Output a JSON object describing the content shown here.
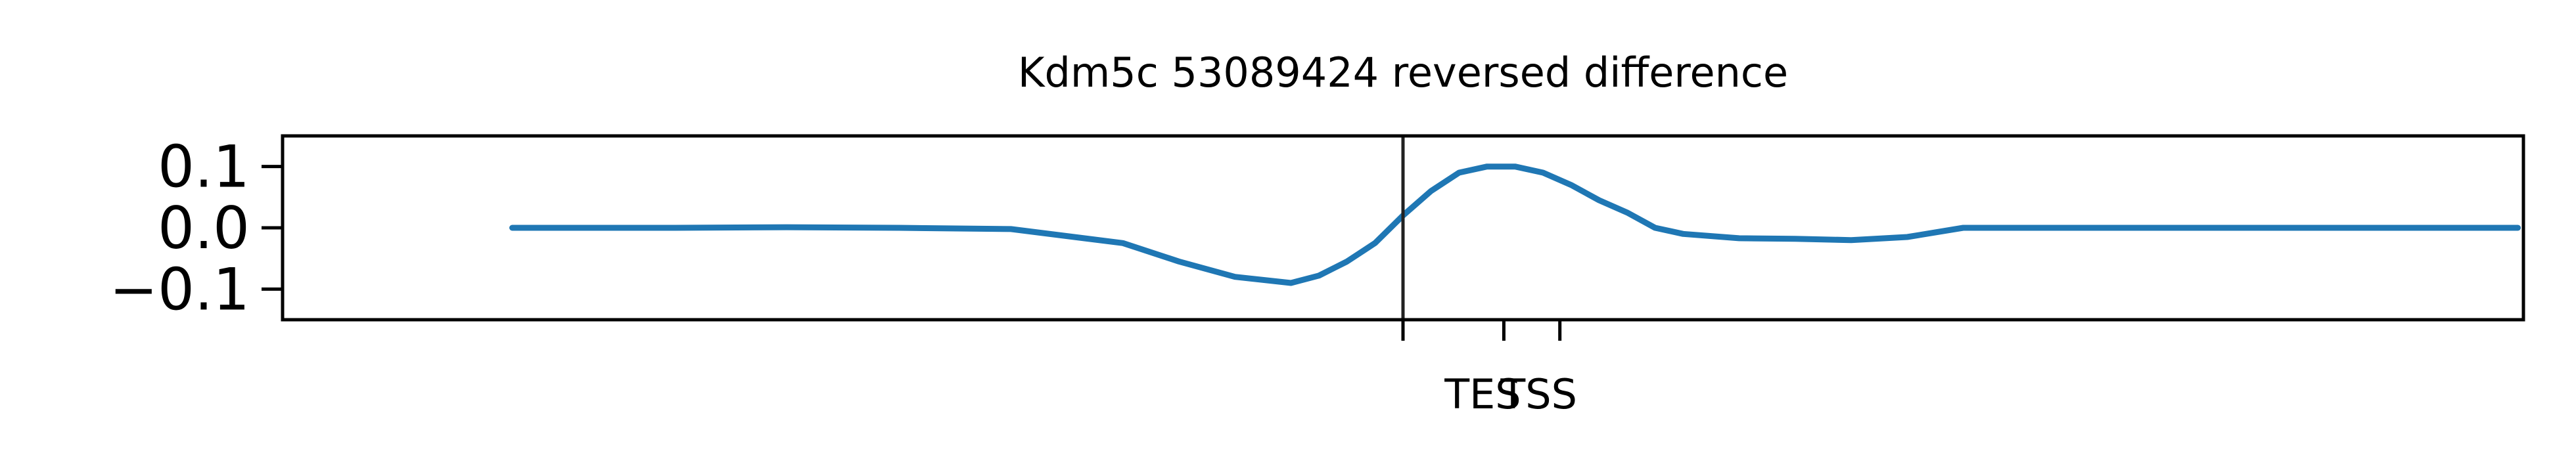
{
  "chart_data": {
    "type": "line",
    "title": "Kdm5c 53089424 reversed difference",
    "xlabel": "",
    "ylabel": "",
    "xlim": [
      -2000,
      2000
    ],
    "ylim": [
      -0.15,
      0.15
    ],
    "grid": false,
    "legend": "none",
    "yticks": [
      {
        "value": 0.1,
        "label": "0.1"
      },
      {
        "value": 0.0,
        "label": "0.0"
      },
      {
        "value": -0.1,
        "label": "−0.1"
      }
    ],
    "xticks": [
      {
        "value": 0,
        "label": ""
      },
      {
        "value": 180,
        "label": "TES"
      },
      {
        "value": 280,
        "label": "TSS"
      }
    ],
    "vline": {
      "x": 0,
      "color": "#222222"
    },
    "series": [
      {
        "color": "#1f77b4",
        "x": [
          -1590,
          -1300,
          -1100,
          -900,
          -700,
          -500,
          -400,
          -300,
          -200,
          -150,
          -100,
          -50,
          0,
          50,
          100,
          150,
          200,
          250,
          300,
          350,
          400,
          450,
          500,
          600,
          700,
          800,
          900,
          1000,
          1100,
          1200,
          1300,
          1400,
          1500,
          1600,
          1700,
          1800,
          1900,
          1990
        ],
        "values": [
          0.0,
          0.0,
          0.001,
          0.0,
          -0.002,
          -0.025,
          -0.055,
          -0.08,
          -0.09,
          -0.078,
          -0.055,
          -0.025,
          0.02,
          0.06,
          0.09,
          0.1,
          0.1,
          0.09,
          0.07,
          0.045,
          0.025,
          0.0,
          -0.01,
          -0.017,
          -0.018,
          -0.02,
          -0.015,
          0.0,
          0.0,
          0.0,
          0.0,
          0.0,
          0.0,
          0.0,
          0.0,
          0.0,
          0.0,
          0.0
        ]
      }
    ]
  }
}
